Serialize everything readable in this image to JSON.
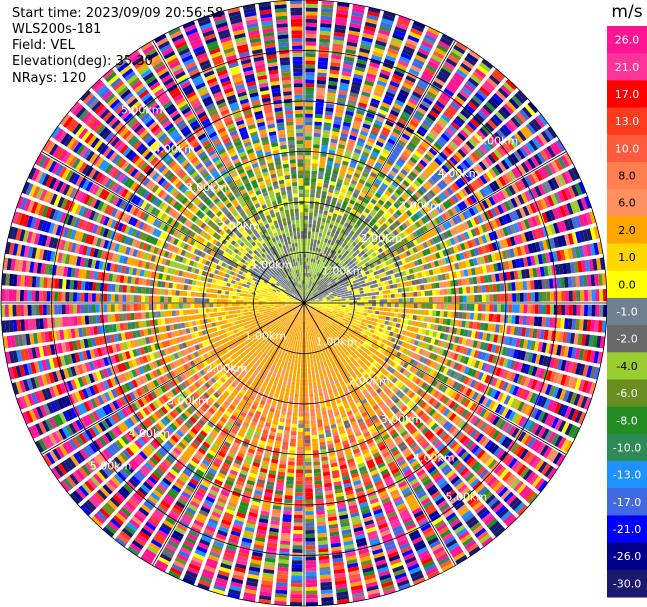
{
  "header": {
    "start_time": "Start time: 2023/09/09 20:56:58",
    "station": "WLS200s-181",
    "field": "Field: VEL",
    "elevation": "Elevation(deg): 35.30",
    "nrays": "NRays: 120"
  },
  "chart_data": {
    "type": "heatmap",
    "projection": "polar-ppi",
    "field": "VEL",
    "units": "m/s",
    "nrays": 120,
    "elevation_deg": 35.3,
    "max_range_km": 6.0,
    "range_ring_labels": [
      "1.00km",
      "2.00km",
      "3.00km",
      "4.00km",
      "5.00km"
    ],
    "range_rings_km": [
      1,
      2,
      3,
      4,
      5,
      6
    ],
    "radial_spokes_deg": [
      0,
      30,
      60,
      90,
      120,
      150,
      180,
      210,
      240,
      270,
      300,
      330
    ],
    "colorbar": {
      "unit_label": "m/s",
      "ticks": [
        "26.0",
        "21.0",
        "17.0",
        "13.0",
        "10.0",
        "8.0",
        "6.0",
        "2.0",
        "1.0",
        "0.0",
        "-1.0",
        "-2.0",
        "-4.0",
        "-6.0",
        "-8.0",
        "-10.0",
        "-13.0",
        "-17.0",
        "-21.0",
        "-26.0",
        "-30.0"
      ],
      "bins": [
        {
          "min": 26,
          "max": 30,
          "color": "#ff1493"
        },
        {
          "min": 21,
          "max": 26,
          "color": "#ff3399"
        },
        {
          "min": 17,
          "max": 21,
          "color": "#ff0000"
        },
        {
          "min": 13,
          "max": 17,
          "color": "#ff3b1f"
        },
        {
          "min": 10,
          "max": 13,
          "color": "#ff5a3c"
        },
        {
          "min": 8,
          "max": 10,
          "color": "#ff7f50"
        },
        {
          "min": 6,
          "max": 8,
          "color": "#ff9060"
        },
        {
          "min": 2,
          "max": 6,
          "color": "#ffa500"
        },
        {
          "min": 1,
          "max": 2,
          "color": "#ffd700"
        },
        {
          "min": 0,
          "max": 1,
          "color": "#ffff00"
        },
        {
          "min": -1,
          "max": 0,
          "color": "#708090"
        },
        {
          "min": -2,
          "max": -1,
          "color": "#696969"
        },
        {
          "min": -4,
          "max": -2,
          "color": "#9acd32"
        },
        {
          "min": -6,
          "max": -4,
          "color": "#6b8e23"
        },
        {
          "min": -8,
          "max": -6,
          "color": "#228b22"
        },
        {
          "min": -10,
          "max": -8,
          "color": "#2e8b57"
        },
        {
          "min": -13,
          "max": -10,
          "color": "#1e90ff"
        },
        {
          "min": -17,
          "max": -13,
          "color": "#4169e1"
        },
        {
          "min": -21,
          "max": -17,
          "color": "#0000ff"
        },
        {
          "min": -26,
          "max": -21,
          "color": "#00008b"
        },
        {
          "min": -30,
          "max": -26,
          "color": "#191970"
        }
      ]
    }
  }
}
